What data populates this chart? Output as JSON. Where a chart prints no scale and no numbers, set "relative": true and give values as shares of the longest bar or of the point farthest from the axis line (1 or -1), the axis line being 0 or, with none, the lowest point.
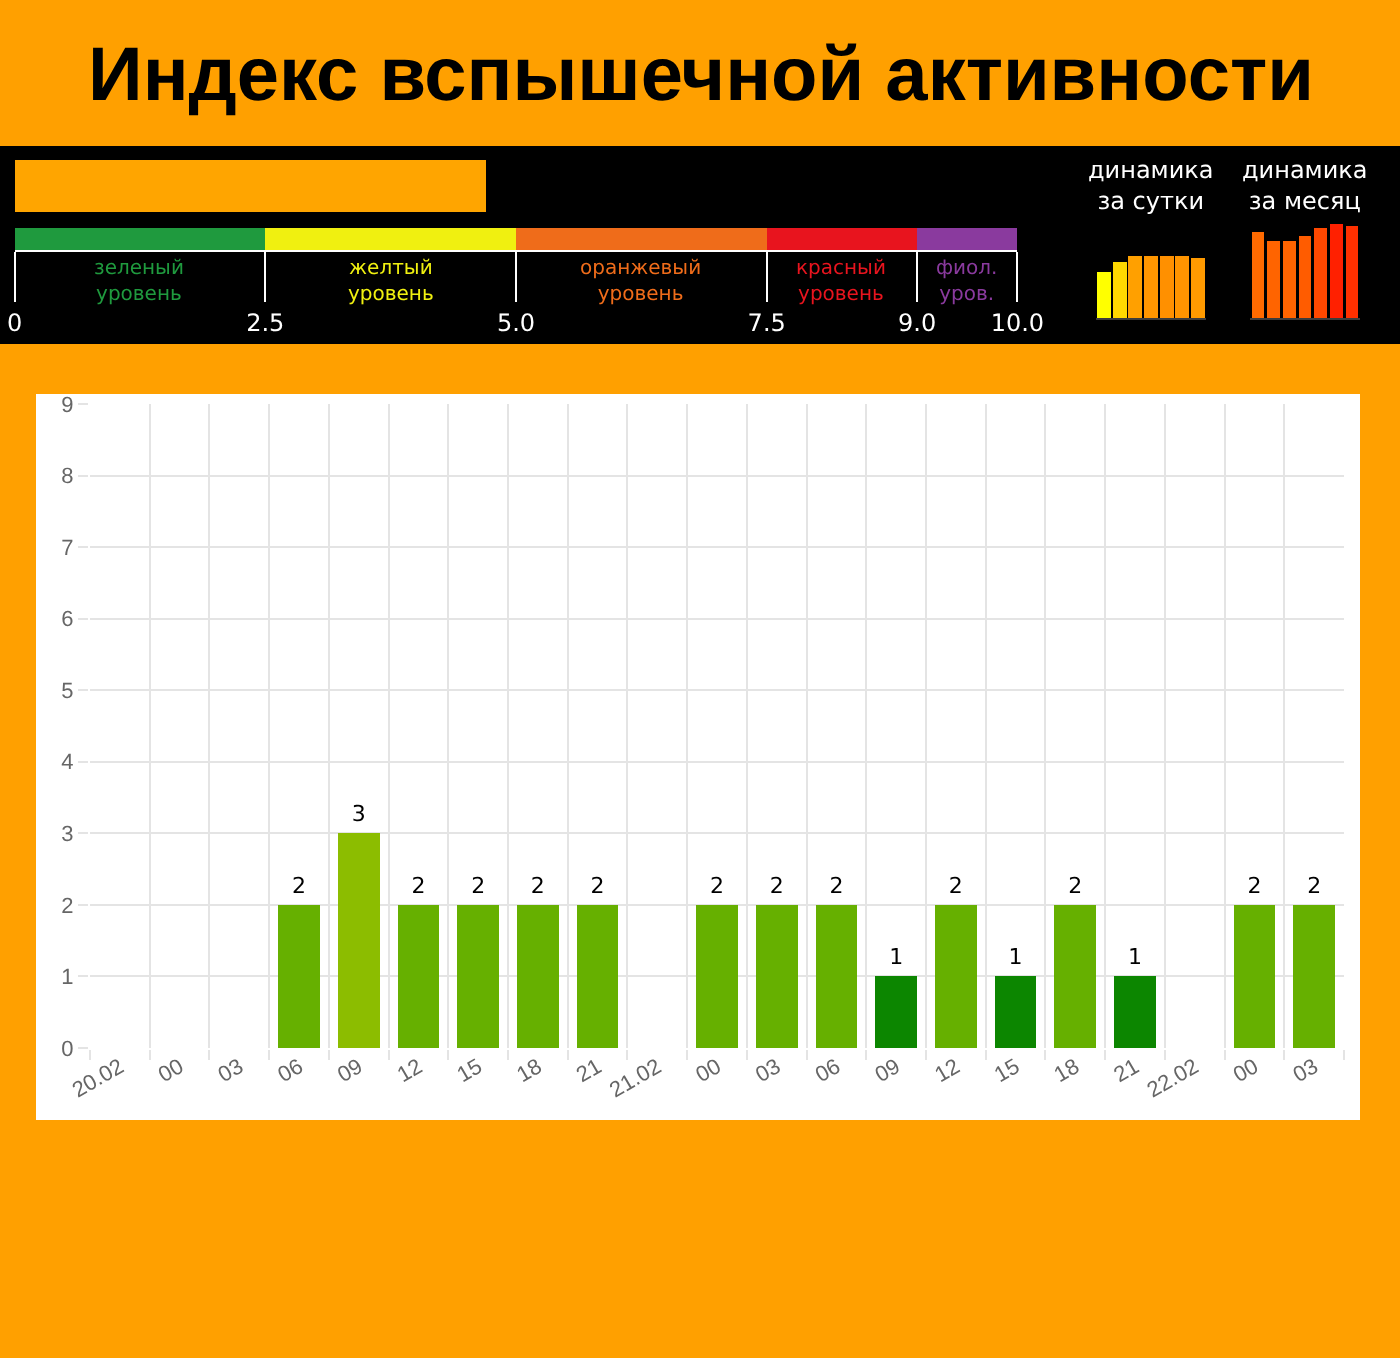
{
  "chart_data": [
    {
      "type": "bar",
      "title": "Индекс вспышечной активности",
      "orientation": "horizontal",
      "categories": [
        null
      ],
      "values": [
        4.7
      ],
      "color": "#ffa500",
      "xlim": [
        0,
        10
      ],
      "tick_labels": false
    },
    {
      "type": "bar",
      "orientation": "horizontal",
      "stacked": true,
      "categories": [
        null
      ],
      "series": [
        {
          "name": "зеленый\nуровень",
          "color": "#1f9a3e",
          "values": [
            2.5
          ]
        },
        {
          "name": "желтый\nуровень",
          "color": "#f0f010",
          "values": [
            2.5
          ]
        },
        {
          "name": "оранжевый\nуровень",
          "color": "#ef6c1a",
          "values": [
            2.5
          ]
        },
        {
          "name": "красный\nуровень",
          "color": "#e8141e",
          "values": [
            1.5
          ]
        },
        {
          "name": "фиол.\nуров.",
          "color": "#8a3a9e",
          "values": [
            1
          ]
        }
      ],
      "xlim": [
        0,
        10
      ],
      "xticks": [
        0,
        2.5,
        {
          "value": 5,
          "label": "5.0"
        },
        7.5,
        {
          "value": 9,
          "label": "9.0"
        },
        {
          "value": 10,
          "label": "10.0"
        }
      ]
    },
    {
      "type": "bar",
      "title": "динамика\nза сутки",
      "relative": true,
      "tick_labels": false,
      "categories": [
        null,
        null,
        null,
        null,
        null,
        null,
        null
      ],
      "values": [
        0.75,
        0.9,
        1,
        1,
        1,
        1,
        0.97
      ],
      "colors": [
        "#ffff00",
        "#ffd800",
        "#ffa000",
        "#ff9600",
        "#ff9000",
        "#ff9400",
        "#ff9a00"
      ]
    },
    {
      "type": "bar",
      "title": "динамика\nза месяц",
      "relative": true,
      "tick_labels": false,
      "categories": [
        null,
        null,
        null,
        null,
        null,
        null,
        null
      ],
      "values": [
        0.91,
        0.82,
        0.82,
        0.87,
        0.96,
        1,
        0.98
      ],
      "colors": [
        "#ff6a00",
        "#ff6400",
        "#ff6400",
        "#ff5c00",
        "#ff4800",
        "#ff2000",
        "#ff3000"
      ]
    },
    {
      "type": "bar",
      "categories": [
        "20.02",
        "00",
        "03",
        "06",
        "09",
        "12",
        "15",
        "18",
        "21",
        "21.02",
        "00",
        "03",
        "06",
        "09",
        "12",
        "15",
        "18",
        "21",
        "22.02",
        "00",
        "03"
      ],
      "values": [
        0,
        0,
        0,
        2,
        3,
        2,
        2,
        2,
        2,
        0,
        2,
        2,
        2,
        1,
        2,
        1,
        2,
        1,
        0,
        2,
        2
      ],
      "colors": [
        "#008000",
        "#008000",
        "#008000",
        "#66b000",
        "#8cbd00",
        "#66b000",
        "#66b000",
        "#66b000",
        "#66b000",
        "#008000",
        "#66b000",
        "#66b000",
        "#66b000",
        "#0c8600",
        "#66b000",
        "#0c8600",
        "#66b000",
        "#0c8600",
        "#008000",
        "#66b000",
        "#66b000"
      ],
      "value_labels": [
        null,
        null,
        null,
        "2",
        "3",
        "2",
        "2",
        "2",
        "2",
        null,
        "2",
        "2",
        "2",
        "1",
        "2",
        "1",
        "2",
        "1",
        null,
        "2",
        "2"
      ],
      "ylim": [
        0,
        9
      ],
      "yticks": [
        0,
        1,
        2,
        3,
        4,
        5,
        6,
        7,
        8,
        9
      ],
      "grid": true
    }
  ]
}
